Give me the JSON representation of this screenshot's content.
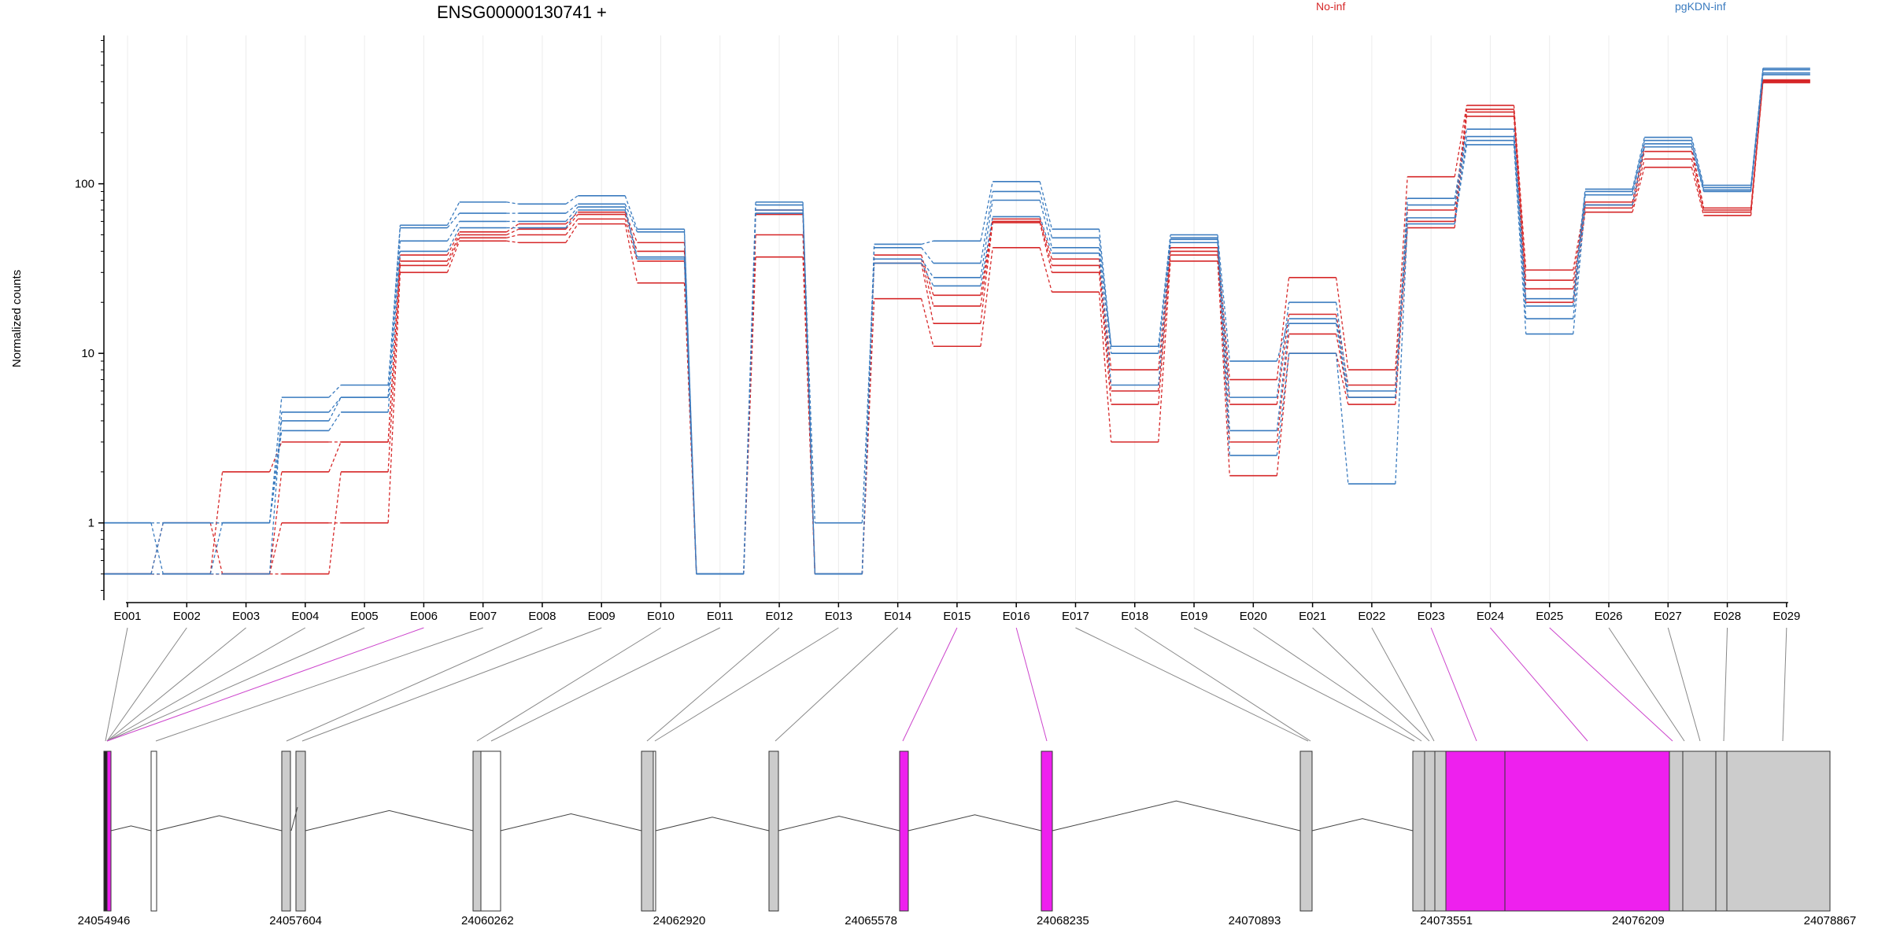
{
  "chart_data": {
    "type": "line",
    "title": "ENSG00000130741 +",
    "ylabel": "Normalized counts",
    "xlabel": "",
    "yscale": "log",
    "ylim": [
      0.35,
      750
    ],
    "yticks": [
      1,
      10,
      100
    ],
    "ytick_labels": [
      "1",
      "10",
      "100"
    ],
    "grid": "vertical lines at each exon",
    "legend": [
      {
        "label": "No-inf",
        "color": "#d62728",
        "position": "top-center"
      },
      {
        "label": "pgKDN-inf",
        "color": "#3a7bbf",
        "position": "top-right"
      }
    ],
    "categories": [
      "E001",
      "E002",
      "E003",
      "E004",
      "E005",
      "E006",
      "E007",
      "E008",
      "E009",
      "E010",
      "E011",
      "E012",
      "E013",
      "E014",
      "E015",
      "E016",
      "E017",
      "E018",
      "E019",
      "E020",
      "E021",
      "E022",
      "E023",
      "E024",
      "E025",
      "E026",
      "E027",
      "E028",
      "E029"
    ],
    "highlighted_exons": [
      "E006",
      "E015",
      "E016",
      "E023",
      "E024",
      "E025"
    ],
    "series": [
      {
        "group": "No-inf",
        "values": [
          0.5,
          0.5,
          0.5,
          1.0,
          1.0,
          30,
          46,
          45,
          58,
          26,
          0.5,
          37,
          0.5,
          21,
          11,
          42,
          23,
          3.0,
          35,
          1.9,
          10,
          5,
          55,
          250,
          20,
          68,
          125,
          65,
          395
        ]
      },
      {
        "group": "No-inf",
        "values": [
          0.5,
          0.5,
          0.5,
          0.5,
          2.0,
          33,
          48,
          50,
          62,
          35,
          0.5,
          50,
          0.5,
          34,
          15,
          59,
          30,
          5.0,
          38,
          3.0,
          13,
          5.5,
          60,
          265,
          24,
          72,
          140,
          68,
          400
        ]
      },
      {
        "group": "No-inf",
        "values": [
          0.5,
          1.0,
          0.5,
          2.0,
          3.0,
          35,
          50,
          54,
          66,
          40,
          0.5,
          66,
          0.5,
          36,
          19,
          60,
          33,
          6.0,
          40,
          5.0,
          17,
          6.5,
          70,
          275,
          27,
          75,
          155,
          70,
          405
        ]
      },
      {
        "group": "No-inf",
        "values": [
          0.5,
          0.5,
          2.0,
          3.0,
          3.0,
          38,
          52,
          58,
          68,
          45,
          0.5,
          70,
          0.5,
          38,
          22,
          62,
          36,
          8.0,
          42,
          7.0,
          28,
          8.0,
          110,
          290,
          31,
          78,
          165,
          72,
          410
        ]
      },
      {
        "group": "pgKDN-inf",
        "values": [
          1.0,
          0.5,
          1.0,
          3.5,
          4.5,
          40,
          55,
          55,
          70,
          36,
          0.5,
          67,
          1.0,
          34,
          25,
          64,
          39,
          6.5,
          45,
          2.5,
          10,
          1.7,
          58,
          170,
          13,
          75,
          165,
          90,
          440
        ]
      },
      {
        "group": "pgKDN-inf",
        "values": [
          0.5,
          0.5,
          0.5,
          4.5,
          5.5,
          46,
          60,
          60,
          73,
          37,
          0.5,
          70,
          0.5,
          36,
          28,
          80,
          42,
          10,
          47,
          3.5,
          15,
          5.5,
          63,
          180,
          16,
          86,
          172,
          92,
          450
        ]
      },
      {
        "group": "pgKDN-inf",
        "values": [
          0.5,
          1.0,
          1.0,
          5.5,
          6.5,
          55,
          67,
          67,
          76,
          52,
          0.5,
          75,
          0.5,
          42,
          34,
          90,
          48,
          11,
          48,
          5.5,
          20,
          6.0,
          75,
          190,
          19,
          90,
          180,
          95,
          470
        ]
      },
      {
        "group": "pgKDN-inf",
        "values": [
          1.0,
          1.0,
          1.0,
          4.0,
          5.5,
          57,
          78,
          76,
          85,
          54,
          0.5,
          78,
          0.5,
          44,
          46,
          103,
          54,
          11,
          50,
          9.0,
          16,
          5.5,
          82,
          210,
          21,
          93,
          188,
          98,
          480
        ]
      }
    ],
    "genomic_ticks": [
      "24054946",
      "24057604",
      "24060262",
      "24062920",
      "24065578",
      "24068235",
      "24070893",
      "24073551",
      "24076209",
      "24078867"
    ]
  }
}
